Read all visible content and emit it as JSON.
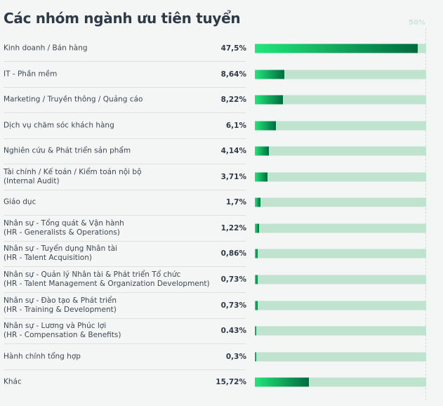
{
  "chart_data": {
    "type": "bar",
    "orientation": "horizontal",
    "title": "Các nhóm ngành ưu tiên tuyển",
    "axis_max_label": "50%",
    "xlim": [
      0,
      50
    ],
    "colors": {
      "fill_start": "#22e67a",
      "fill_end": "#006b3f",
      "track": "#c0e3cf"
    },
    "categories": [
      [
        "Kinh doanh / Bán hàng"
      ],
      [
        "IT - Phần mềm"
      ],
      [
        "Marketing / Truyền thông / Quảng cáo"
      ],
      [
        "Dịch vụ chăm sóc khách hàng"
      ],
      [
        "Nghiên cứu & Phát triển sản phẩm"
      ],
      [
        "Tài chính / Kế toán / Kiểm toán nội bộ",
        "(Internal Audit)"
      ],
      [
        "Giáo dục"
      ],
      [
        "Nhân sự - Tổng quát & Vận hành",
        "(HR - Generalists & Operations)"
      ],
      [
        "Nhân sự - Tuyển dụng Nhân tài",
        "(HR - Talent Acquisition)"
      ],
      [
        "Nhân sự - Quản lý Nhân tài & Phát triển Tổ chức",
        "(HR - Talent Management & Organization Development)"
      ],
      [
        "Nhân sự - Đào tạo & Phát triển",
        "(HR - Training & Development)"
      ],
      [
        "Nhân sự - Lương và Phúc lợi",
        "(HR - Compensation & Benefits)"
      ],
      [
        "Hành chính tổng hợp"
      ],
      [
        "Khác"
      ]
    ],
    "value_labels": [
      "47,5%",
      "8,64%",
      "8,22%",
      "6,1%",
      "4,14%",
      "3,71%",
      "1,7%",
      "1,22%",
      "0,86%",
      "0,73%",
      "0,73%",
      "0.43%",
      "0,3%",
      "15,72%"
    ],
    "values": [
      47.5,
      8.64,
      8.22,
      6.1,
      4.14,
      3.71,
      1.7,
      1.22,
      0.86,
      0.73,
      0.73,
      0.43,
      0.3,
      15.72
    ]
  }
}
